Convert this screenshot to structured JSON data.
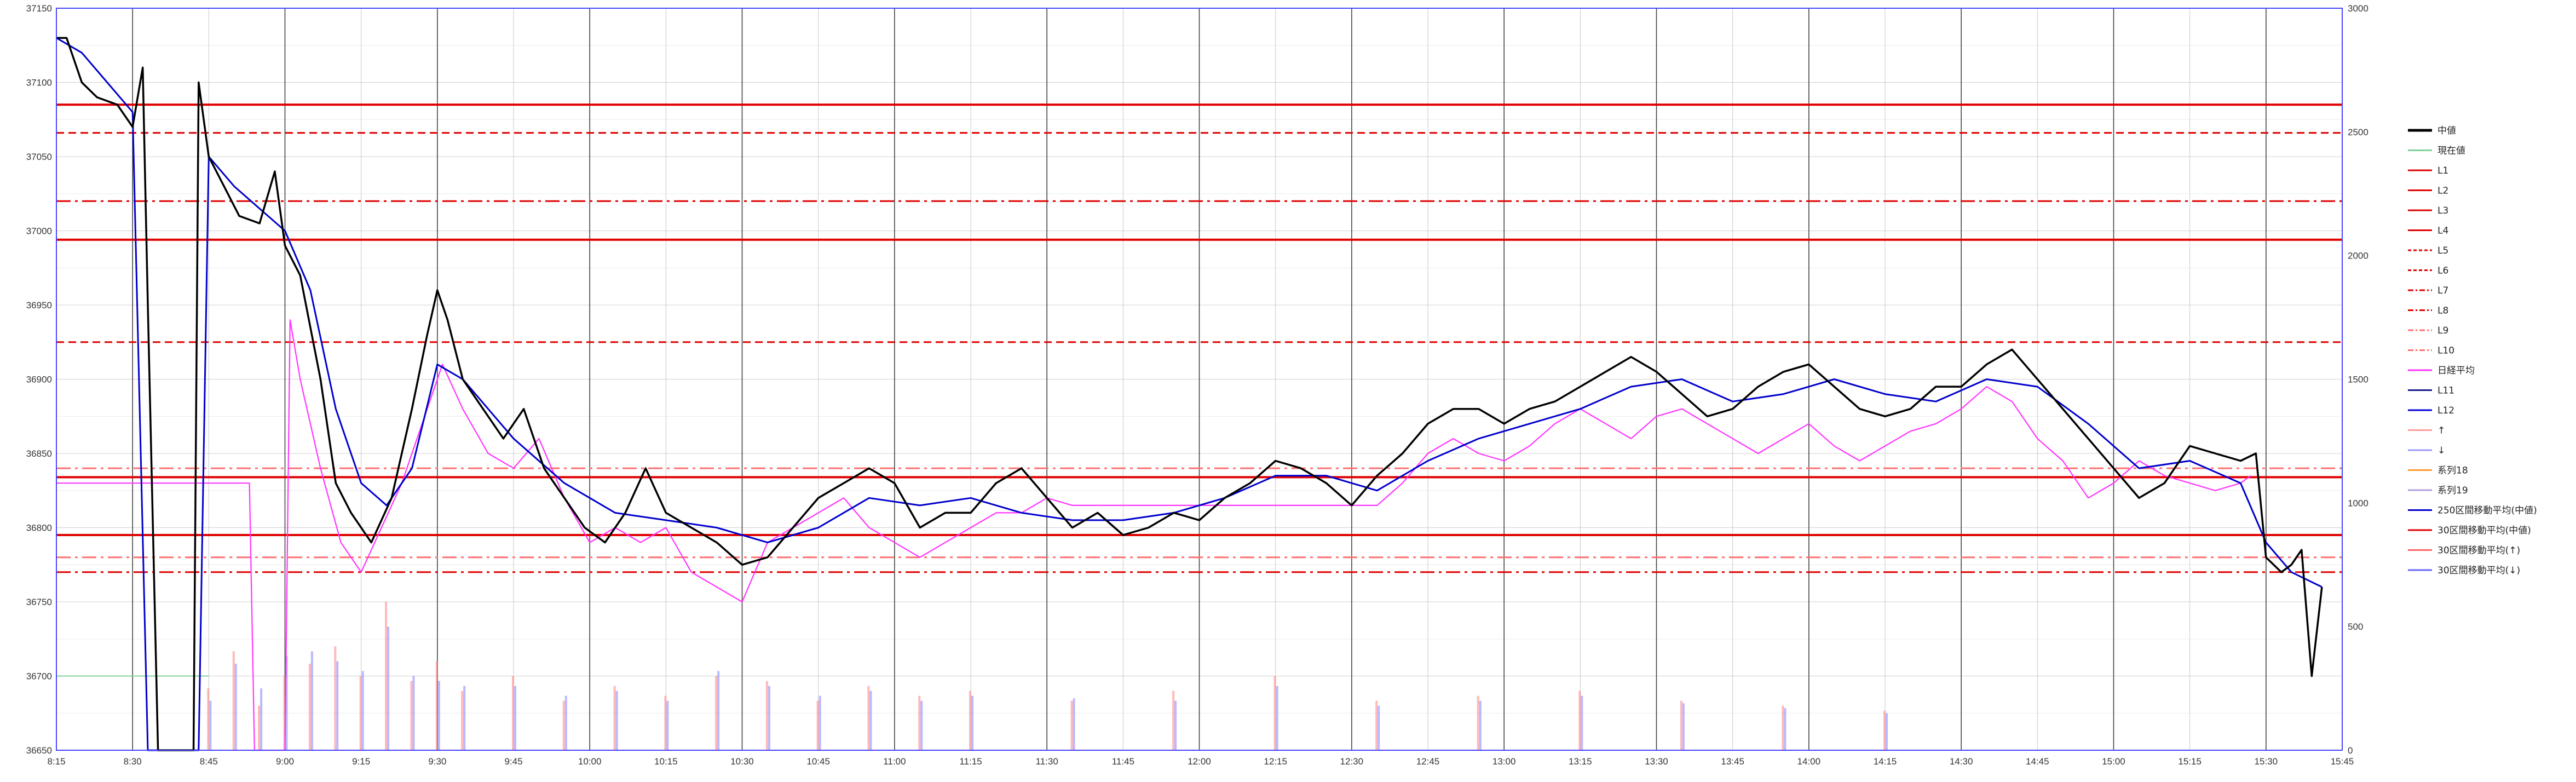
{
  "chart_data": {
    "type": "line",
    "title": "",
    "xlabel": "",
    "ylabel": "",
    "y_left": {
      "min": 36650,
      "max": 37150,
      "ticks": [
        {
          "v": 36650,
          "label": "36650"
        },
        {
          "v": 36700,
          "label": "36700"
        },
        {
          "v": 36750,
          "label": "36750"
        },
        {
          "v": 36800,
          "label": "36800"
        },
        {
          "v": 36850,
          "label": "36850"
        },
        {
          "v": 36900,
          "label": "36900"
        },
        {
          "v": 36950,
          "label": "36950"
        },
        {
          "v": 37000,
          "label": "37000"
        },
        {
          "v": 37050,
          "label": "37050"
        },
        {
          "v": 37100,
          "label": "37100"
        },
        {
          "v": 37150,
          "label": "37150"
        }
      ]
    },
    "y_right": {
      "min": 0,
      "max": 3000,
      "ticks": [
        {
          "v": 0,
          "label": "0"
        },
        {
          "v": 500,
          "label": "500"
        },
        {
          "v": 1000,
          "label": "1000"
        },
        {
          "v": 1500,
          "label": "1500"
        },
        {
          "v": 2000,
          "label": "2000"
        },
        {
          "v": 2500,
          "label": "2500"
        },
        {
          "v": 3000,
          "label": "3000"
        }
      ]
    },
    "x_axis": {
      "start": "8:15",
      "end": "15:45",
      "ticks": [
        {
          "m": 0,
          "label": "8:15"
        },
        {
          "m": 15,
          "label": "8:30"
        },
        {
          "m": 30,
          "label": "8:45"
        },
        {
          "m": 45,
          "label": "9:00"
        },
        {
          "m": 60,
          "label": "9:15"
        },
        {
          "m": 75,
          "label": "9:30"
        },
        {
          "m": 90,
          "label": "9:45"
        },
        {
          "m": 105,
          "label": "10:00"
        },
        {
          "m": 120,
          "label": "10:15"
        },
        {
          "m": 135,
          "label": "10:30"
        },
        {
          "m": 150,
          "label": "10:45"
        },
        {
          "m": 165,
          "label": "11:00"
        },
        {
          "m": 180,
          "label": "11:15"
        },
        {
          "m": 195,
          "label": "11:30"
        },
        {
          "m": 210,
          "label": "11:45"
        },
        {
          "m": 225,
          "label": "12:00"
        },
        {
          "m": 240,
          "label": "12:15"
        },
        {
          "m": 255,
          "label": "12:30"
        },
        {
          "m": 270,
          "label": "12:45"
        },
        {
          "m": 285,
          "label": "13:00"
        },
        {
          "m": 300,
          "label": "13:15"
        },
        {
          "m": 315,
          "label": "13:30"
        },
        {
          "m": 330,
          "label": "13:45"
        },
        {
          "m": 345,
          "label": "14:00"
        },
        {
          "m": 360,
          "label": "14:15"
        },
        {
          "m": 375,
          "label": "14:30"
        },
        {
          "m": 390,
          "label": "14:45"
        },
        {
          "m": 405,
          "label": "15:00"
        },
        {
          "m": 420,
          "label": "15:15"
        },
        {
          "m": 435,
          "label": "15:30"
        },
        {
          "m": 450,
          "label": "15:45"
        }
      ]
    },
    "grid": true,
    "legend_position": "right",
    "legend": [
      {
        "label": "中値",
        "color": "#000000",
        "style": "solid-thick"
      },
      {
        "label": "現在値",
        "color": "#7fd19a",
        "style": "solid"
      },
      {
        "label": "L1",
        "color": "#e00000",
        "style": "solid"
      },
      {
        "label": "L2",
        "color": "#e00000",
        "style": "solid"
      },
      {
        "label": "L3",
        "color": "#e00000",
        "style": "solid"
      },
      {
        "label": "L4",
        "color": "#e00000",
        "style": "solid"
      },
      {
        "label": "L5",
        "color": "#e00000",
        "style": "dash"
      },
      {
        "label": "L6",
        "color": "#e00000",
        "style": "dash"
      },
      {
        "label": "L7",
        "color": "#e00000",
        "style": "dashdot"
      },
      {
        "label": "L8",
        "color": "#e00000",
        "style": "dashdot"
      },
      {
        "label": "L9",
        "color": "#ff7070",
        "style": "dashdot"
      },
      {
        "label": "L10",
        "color": "#ff7070",
        "style": "dashdot"
      },
      {
        "label": "日経平均",
        "color": "#ff33ff",
        "style": "solid"
      },
      {
        "label": "L11",
        "color": "#1a1a8c",
        "style": "solid"
      },
      {
        "label": "L12",
        "color": "#0000dd",
        "style": "solid"
      },
      {
        "label": "↑",
        "color": "#ff9a9a",
        "style": "solid"
      },
      {
        "label": "↓",
        "color": "#9a9aff",
        "style": "solid"
      },
      {
        "label": "系列18",
        "color": "#ff9933",
        "style": "solid"
      },
      {
        "label": "系列19",
        "color": "#b0a0e0",
        "style": "solid"
      },
      {
        "label": "250区間移動平均(中値)",
        "color": "#0000cc",
        "style": "solid"
      },
      {
        "label": "30区間移動平均(中値)",
        "color": "#e00000",
        "style": "solid"
      },
      {
        "label": "30区間移動平均(↑)",
        "color": "#ff6666",
        "style": "solid"
      },
      {
        "label": "30区間移動平均(↓)",
        "color": "#6666ff",
        "style": "solid"
      }
    ],
    "level_lines": [
      {
        "name": "L1",
        "y": 37085,
        "style": "solid",
        "color": "#e00000"
      },
      {
        "name": "L2",
        "y": 36994,
        "style": "solid",
        "color": "#e00000"
      },
      {
        "name": "L3",
        "y": 36834,
        "style": "solid",
        "color": "#e00000"
      },
      {
        "name": "L4",
        "y": 36795,
        "style": "solid",
        "color": "#e00000"
      },
      {
        "name": "L5",
        "y": 37066,
        "style": "dash",
        "color": "#e00000"
      },
      {
        "name": "L6",
        "y": 36925,
        "style": "dash",
        "color": "#e00000"
      },
      {
        "name": "L7",
        "y": 37020,
        "style": "dashdot",
        "color": "#e00000"
      },
      {
        "name": "L8",
        "y": 36770,
        "style": "dashdot",
        "color": "#e00000"
      },
      {
        "name": "L9",
        "y": 36840,
        "style": "dashdot",
        "color": "#ff7070"
      },
      {
        "name": "L10",
        "y": 36780,
        "style": "dashdot",
        "color": "#ff7070"
      }
    ],
    "series": [
      {
        "name": "中値",
        "color": "#000000",
        "x": [
          0,
          2,
          5,
          8,
          12,
          15,
          17,
          18,
          20,
          25,
          27,
          28,
          30,
          33,
          36,
          40,
          43,
          45,
          48,
          52,
          55,
          58,
          62,
          66,
          70,
          73,
          75,
          77,
          80,
          84,
          88,
          92,
          96,
          100,
          104,
          108,
          112,
          116,
          120,
          125,
          130,
          135,
          140,
          145,
          150,
          155,
          160,
          165,
          170,
          175,
          180,
          185,
          190,
          195,
          200,
          205,
          210,
          215,
          220,
          225,
          230,
          235,
          240,
          245,
          250,
          255,
          260,
          265,
          270,
          275,
          280,
          285,
          290,
          295,
          300,
          305,
          310,
          315,
          320,
          325,
          330,
          335,
          340,
          345,
          350,
          355,
          360,
          365,
          370,
          375,
          380,
          385,
          390,
          395,
          400,
          405,
          410,
          415,
          420,
          425,
          430,
          433,
          435,
          438,
          440,
          442,
          444,
          446
        ],
        "y": [
          37130,
          37130,
          37100,
          37090,
          37085,
          37070,
          37110,
          36950,
          36650,
          36650,
          36650,
          37100,
          37050,
          37030,
          37010,
          37005,
          37040,
          36990,
          36970,
          36900,
          36830,
          36810,
          36790,
          36820,
          36880,
          36930,
          36960,
          36940,
          36900,
          36880,
          36860,
          36880,
          36840,
          36820,
          36800,
          36790,
          36810,
          36840,
          36810,
          36800,
          36790,
          36775,
          36780,
          36800,
          36820,
          36830,
          36840,
          36830,
          36800,
          36810,
          36810,
          36830,
          36840,
          36820,
          36800,
          36810,
          36795,
          36800,
          36810,
          36805,
          36820,
          36830,
          36845,
          36840,
          36830,
          36815,
          36835,
          36850,
          36870,
          36880,
          36880,
          36870,
          36880,
          36885,
          36895,
          36905,
          36915,
          36905,
          36890,
          36875,
          36880,
          36895,
          36905,
          36910,
          36895,
          36880,
          36875,
          36880,
          36895,
          36895,
          36910,
          36920,
          36900,
          36880,
          36860,
          36840,
          36820,
          36830,
          36855,
          36850,
          36845,
          36850,
          36780,
          36770,
          36775,
          36785,
          36700,
          36760
        ]
      },
      {
        "name": "250区間移動平均(中値)",
        "color": "#0000cc",
        "x": [
          0,
          5,
          10,
          15,
          18,
          20,
          25,
          28,
          30,
          35,
          40,
          45,
          50,
          55,
          60,
          65,
          70,
          75,
          80,
          85,
          90,
          100,
          110,
          120,
          130,
          140,
          150,
          160,
          170,
          180,
          190,
          200,
          210,
          220,
          230,
          240,
          250,
          260,
          270,
          280,
          290,
          300,
          310,
          320,
          330,
          340,
          350,
          360,
          370,
          380,
          390,
          400,
          410,
          420,
          430,
          435,
          440,
          446
        ],
        "y": [
          37130,
          37120,
          37100,
          37080,
          36650,
          36650,
          36650,
          36650,
          37050,
          37030,
          37015,
          37000,
          36960,
          36880,
          36830,
          36815,
          36840,
          36910,
          36900,
          36880,
          36860,
          36830,
          36810,
          36805,
          36800,
          36790,
          36800,
          36820,
          36815,
          36820,
          36810,
          36805,
          36805,
          36810,
          36820,
          36835,
          36835,
          36825,
          36845,
          36860,
          36870,
          36880,
          36895,
          36900,
          36885,
          36890,
          36900,
          36890,
          36885,
          36900,
          36895,
          36870,
          36840,
          36845,
          36830,
          36790,
          36770,
          36760
        ]
      },
      {
        "name": "日経平均",
        "color": "#ff33ff",
        "x": [
          0,
          20,
          38,
          39,
          45,
          46,
          48,
          52,
          56,
          60,
          64,
          68,
          72,
          76,
          80,
          85,
          90,
          95,
          100,
          105,
          110,
          115,
          120,
          125,
          130,
          135,
          140,
          145,
          150,
          155,
          160,
          165,
          170,
          175,
          180,
          185,
          190,
          195,
          200,
          205,
          210,
          215,
          220,
          225,
          230,
          235,
          240,
          245,
          250,
          255,
          260,
          265,
          270,
          275,
          280,
          285,
          290,
          295,
          300,
          305,
          310,
          315,
          320,
          325,
          330,
          335,
          340,
          345,
          350,
          355,
          360,
          365,
          370,
          375,
          380,
          385,
          390,
          395,
          400,
          405,
          410,
          415,
          420,
          425,
          430,
          432
        ],
        "y": [
          36830,
          36830,
          36830,
          36650,
          36650,
          36940,
          36900,
          36840,
          36790,
          36770,
          36800,
          36830,
          36870,
          36910,
          36880,
          36850,
          36840,
          36860,
          36820,
          36790,
          36800,
          36790,
          36800,
          36770,
          36760,
          36750,
          36790,
          36800,
          36810,
          36820,
          36800,
          36790,
          36780,
          36790,
          36800,
          36810,
          36810,
          36820,
          36815,
          36815,
          36815,
          36815,
          36815,
          36815,
          36815,
          36815,
          36815,
          36815,
          36815,
          36815,
          36815,
          36830,
          36850,
          36860,
          36850,
          36845,
          36855,
          36870,
          36880,
          36870,
          36860,
          36875,
          36880,
          36870,
          36860,
          36850,
          36860,
          36870,
          36855,
          36845,
          36855,
          36865,
          36870,
          36880,
          36895,
          36885,
          36860,
          36845,
          36820,
          36830,
          36845,
          36835,
          36830,
          36825,
          36830,
          36835
        ]
      },
      {
        "name": "現在値",
        "color": "#7fd19a",
        "x": [
          0,
          30
        ],
        "y": [
          36700,
          36700
        ]
      }
    ],
    "volume": {
      "axis": "right",
      "up_color": "#ff8080",
      "down_color": "#8080ff",
      "series": [
        {
          "name": "↑",
          "x": [
            30,
            35,
            40,
            45,
            50,
            55,
            60,
            65,
            70,
            75,
            80,
            90,
            100,
            110,
            120,
            130,
            140,
            150,
            160,
            170,
            180,
            200,
            220,
            240,
            260,
            280,
            300,
            320,
            340,
            360
          ],
          "values": [
            250,
            400,
            180,
            300,
            350,
            420,
            300,
            600,
            280,
            360,
            240,
            300,
            200,
            260,
            220,
            300,
            280,
            200,
            260,
            220,
            240,
            200,
            240,
            300,
            200,
            220,
            240,
            200,
            180,
            160
          ]
        },
        {
          "name": "↓",
          "x": [
            30,
            35,
            40,
            45,
            50,
            55,
            60,
            65,
            70,
            75,
            80,
            90,
            100,
            110,
            120,
            130,
            140,
            150,
            160,
            170,
            180,
            200,
            220,
            240,
            260,
            280,
            300,
            320,
            340,
            360
          ],
          "values": [
            200,
            350,
            250,
            380,
            400,
            360,
            320,
            500,
            300,
            280,
            260,
            260,
            220,
            240,
            200,
            320,
            260,
            220,
            240,
            200,
            220,
            210,
            200,
            260,
            180,
            200,
            220,
            190,
            170,
            150
          ]
        }
      ]
    }
  }
}
